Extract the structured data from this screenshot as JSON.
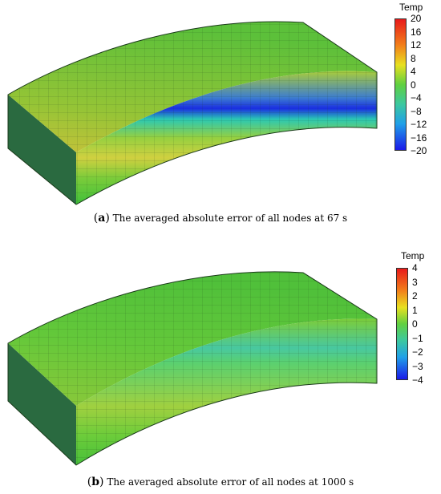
{
  "panels": [
    {
      "id": "a",
      "caption_label": "a",
      "caption_text": "The averaged absolute error of all nodes at 67 s",
      "legend": {
        "title": "Temp",
        "ticks": [
          "20",
          "16",
          "12",
          "8",
          "4",
          "0",
          "−4",
          "−8",
          "−12",
          "−16",
          "−20"
        ]
      },
      "colors": {
        "top": "#7cc832",
        "front_top": "#9ed03a",
        "stripe": "#1a3ee6",
        "front_bottom": "#58c83a",
        "side": "#2f8f3a"
      }
    },
    {
      "id": "b",
      "caption_label": "b",
      "caption_text": "The averaged absolute error of all nodes at 1000 s",
      "legend": {
        "title": "Temp",
        "ticks": [
          "4",
          "3",
          "2",
          "1",
          "0",
          "−1",
          "−2",
          "−3",
          "−4"
        ]
      },
      "colors": {
        "top": "#5ec83a",
        "front_top": "#6ccc3a",
        "stripe": "#3cc8a0",
        "front_bottom": "#62c83a",
        "side": "#2f8f3a"
      }
    }
  ]
}
